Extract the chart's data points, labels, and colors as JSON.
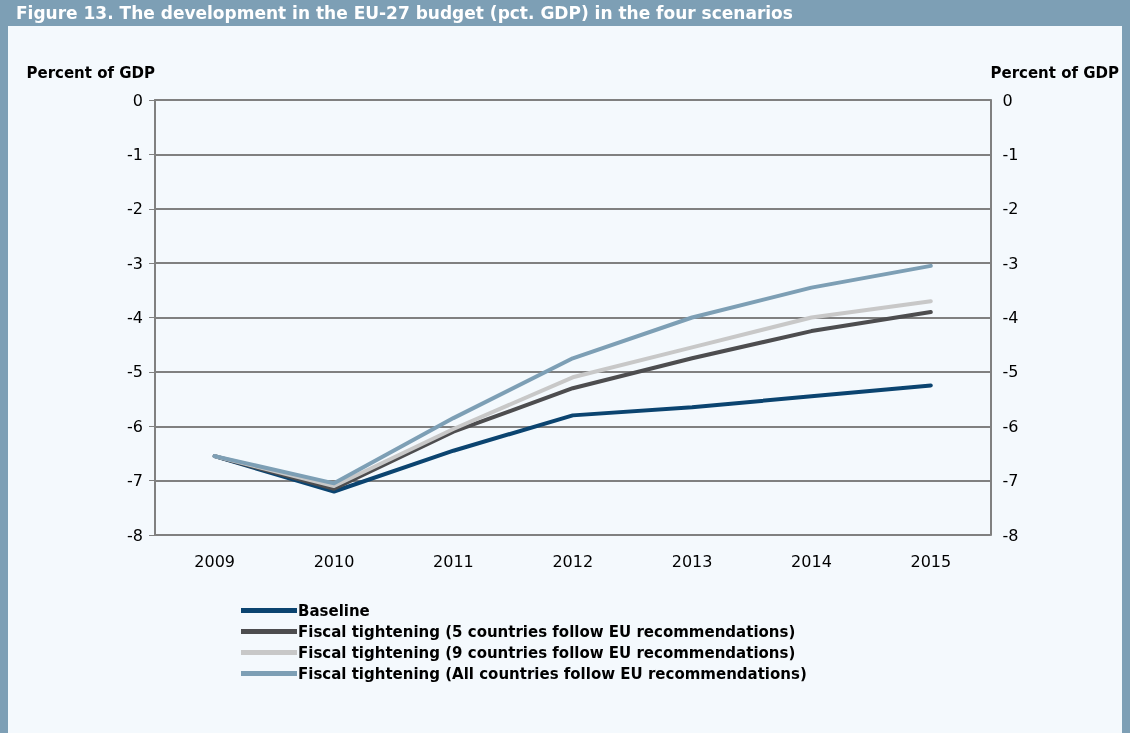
{
  "chart_data": {
    "type": "line",
    "title": "Figure 13. The development in the EU-27 budget (pct. GDP) in the four scenarios",
    "ylabel": "Percent of GDP",
    "y2label": "Percent of GDP",
    "categories": [
      "2009",
      "2010",
      "2011",
      "2012",
      "2013",
      "2014",
      "2015"
    ],
    "series": [
      {
        "name": "Baseline",
        "color": "#0b4470",
        "values": [
          -6.55,
          -7.2,
          -6.45,
          -5.8,
          -5.65,
          -5.45,
          -5.25
        ]
      },
      {
        "name": "Fiscal tightening (5 countries follow EU recommendations)",
        "color": "#4d4d4f",
        "values": [
          -6.55,
          -7.15,
          -6.1,
          -5.3,
          -4.75,
          -4.25,
          -3.9
        ]
      },
      {
        "name": "Fiscal tightening (9 countries follow EU recommendations)",
        "color": "#c8c8c8",
        "values": [
          -6.55,
          -7.1,
          -6.05,
          -5.1,
          -4.55,
          -4.0,
          -3.7
        ]
      },
      {
        "name": "Fiscal tightening (All countries follow EU recommendations)",
        "color": "#7d9fb5",
        "values": [
          -6.55,
          -7.05,
          -5.85,
          -4.75,
          -4.0,
          -3.45,
          -3.05
        ]
      }
    ],
    "ylim": [
      -8,
      0
    ],
    "yticks": [
      -8,
      -7,
      -6,
      -5,
      -4,
      -3,
      -2,
      -1,
      0
    ],
    "y2lim": [
      -8,
      0
    ],
    "y2ticks": [
      -8,
      -7,
      -6,
      -5,
      -4,
      -3,
      -2,
      -1,
      0
    ],
    "grid": "y",
    "legend": "bottom",
    "marker": "none",
    "line_style": "solid"
  }
}
